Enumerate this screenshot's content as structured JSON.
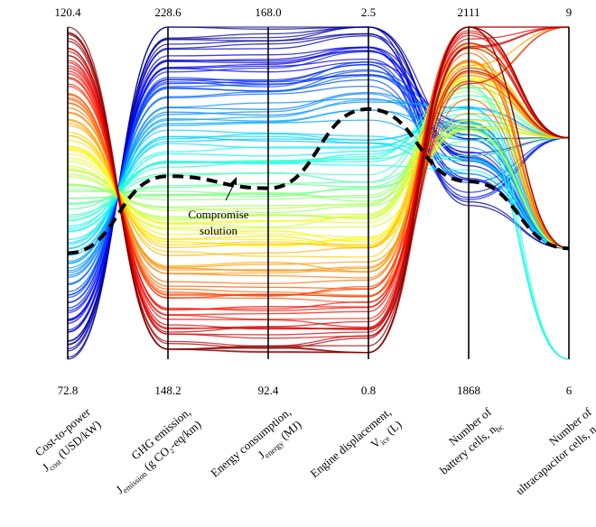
{
  "chart_data": {
    "type": "parallel-coordinates",
    "axes": [
      {
        "name": "Cost-to-power",
        "symbol": "J",
        "sub": "cost",
        "unit": "(USD/kW)",
        "max": "120.4",
        "min": "72.8"
      },
      {
        "name": "GHG emission,",
        "symbol": "J",
        "sub": "emission",
        "unit": "(g CO₂-eq/km)",
        "max": "228.6",
        "min": "148.2"
      },
      {
        "name": "Energy consumption,",
        "symbol": "J",
        "sub": "energy",
        "unit": "(MJ)",
        "max": "168.0",
        "min": "92.4"
      },
      {
        "name": "Engine displacement,",
        "symbol": "V",
        "sub": "ice",
        "unit": "(L)",
        "max": "2.5",
        "min": "0.8"
      },
      {
        "name": "Number of",
        "symbol": "battery cells, n",
        "sub": "bc",
        "unit": "",
        "max": "2111",
        "min": "1868"
      },
      {
        "name": "Number of",
        "symbol": "ultracapacitor cells, n",
        "sub": "uc",
        "unit": "",
        "max": "9",
        "min": "6"
      }
    ],
    "compromise_solution": {
      "label_line1": "Compromise",
      "label_line2": "solution",
      "values": [
        88.0,
        192.5,
        131.3,
        2.08,
        1998,
        7
      ]
    },
    "colormap": "jet",
    "num_solutions": 110
  }
}
